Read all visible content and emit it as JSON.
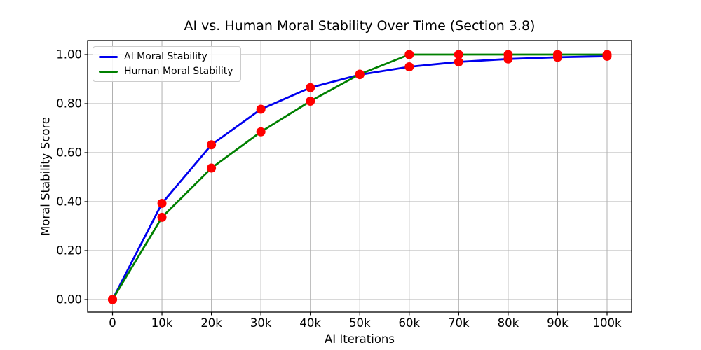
{
  "figure": {
    "background": "#ffffff",
    "spine_color": "#000000",
    "grid_color": "#b0b0b0",
    "text_color": "#000000"
  },
  "chart_data": {
    "type": "line",
    "title": "AI vs. Human Moral Stability Over Time (Section 3.8)",
    "xlabel": "AI Iterations",
    "ylabel": "Moral Stability Score",
    "x": [
      0,
      10000,
      20000,
      30000,
      40000,
      50000,
      60000,
      70000,
      80000,
      90000,
      100000
    ],
    "x_tick_labels": [
      "0",
      "10k",
      "20k",
      "30k",
      "40k",
      "50k",
      "60k",
      "70k",
      "80k",
      "90k",
      "100k"
    ],
    "y_ticks": [
      0.0,
      0.2,
      0.4,
      0.6,
      0.8,
      1.0
    ],
    "y_tick_labels": [
      "0.00",
      "0.20",
      "0.40",
      "0.60",
      "0.80",
      "1.00"
    ],
    "xlim": [
      -5000,
      105000
    ],
    "ylim": [
      -0.05,
      1.05
    ],
    "grid": true,
    "legend_position": "upper left",
    "series": [
      {
        "name": "AI Moral Stability",
        "color": "#0000ee",
        "values": [
          0.0,
          0.393,
          0.632,
          0.777,
          0.865,
          0.918,
          0.95,
          0.97,
          0.982,
          0.989,
          0.993
        ]
      },
      {
        "name": "Human Moral Stability",
        "color": "#008000",
        "values": [
          0.0,
          0.336,
          0.537,
          0.685,
          0.81,
          0.92,
          1.0,
          1.0,
          1.0,
          1.0,
          1.0
        ]
      }
    ],
    "markers": {
      "shape": "circle",
      "color": "#ff0000",
      "radius": 6.5,
      "on": "every-data-point-of-both-series"
    }
  }
}
